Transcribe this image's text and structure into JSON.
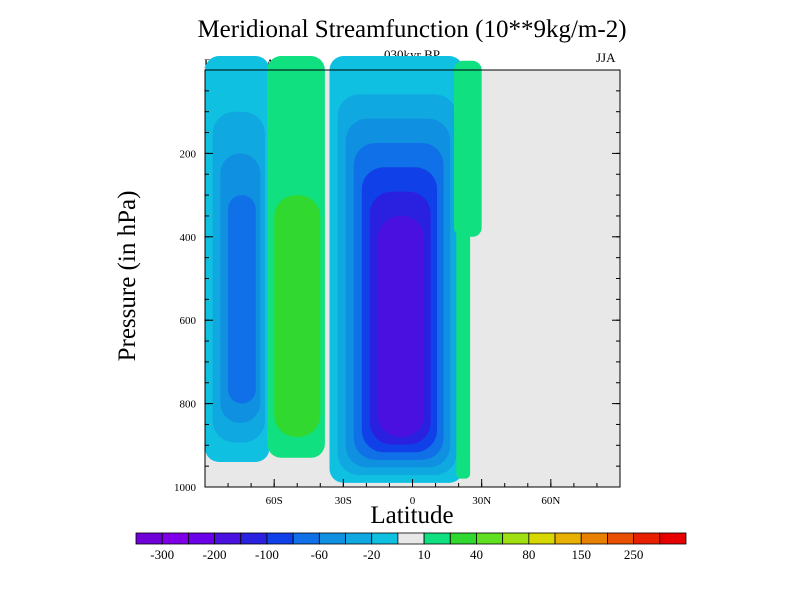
{
  "chart_data": {
    "type": "heatmap",
    "title": "Meridional Streamfunction (10**9kg/m-2)",
    "subtitle": "030kyr BP",
    "left_label": "Expt = tdxoA",
    "right_label": "JJA",
    "xlabel": "Latitude",
    "ylabel": "Pressure (in hPa)",
    "xlim": [
      -90,
      90
    ],
    "ylim": [
      1000,
      0
    ],
    "y_reversed": true,
    "x_ticks": [
      {
        "value": -60,
        "label": "60S"
      },
      {
        "value": -30,
        "label": "30S"
      },
      {
        "value": 0,
        "label": "0"
      },
      {
        "value": 30,
        "label": "30N"
      },
      {
        "value": 60,
        "label": "60N"
      }
    ],
    "y_ticks": [
      {
        "value": 200,
        "label": "200"
      },
      {
        "value": 400,
        "label": "400"
      },
      {
        "value": 600,
        "label": "600"
      },
      {
        "value": 800,
        "label": "800"
      },
      {
        "value": 1000,
        "label": "1000"
      }
    ],
    "background_color": "#e8e8e8",
    "colorbar": {
      "levels": [
        -300,
        -250,
        -200,
        -150,
        -100,
        -80,
        -60,
        -40,
        -20,
        -10,
        10,
        20,
        40,
        60,
        80,
        100,
        150,
        200,
        250,
        300
      ],
      "labels": [
        {
          "after_level_index": 0,
          "label": "-300"
        },
        {
          "after_level_index": 2,
          "label": "-200"
        },
        {
          "after_level_index": 4,
          "label": "-100"
        },
        {
          "after_level_index": 6,
          "label": "-60"
        },
        {
          "after_level_index": 8,
          "label": "-20"
        },
        {
          "after_level_index": 10,
          "label": "10"
        },
        {
          "after_level_index": 12,
          "label": "40"
        },
        {
          "after_level_index": 14,
          "label": "80"
        },
        {
          "after_level_index": 16,
          "label": "150"
        },
        {
          "after_level_index": 18,
          "label": "250"
        }
      ],
      "colors": [
        "#7000d8",
        "#7f00e8",
        "#6a00e8",
        "#4a10e0",
        "#2a20e0",
        "#1040e8",
        "#1070e8",
        "#1090e0",
        "#10a8e0",
        "#10c0e0",
        "#e8e8e8",
        "#10e080",
        "#30d830",
        "#60e020",
        "#a0e010",
        "#d8d800",
        "#e8b000",
        "#e88000",
        "#e85000",
        "#e82000",
        "#e80000"
      ]
    },
    "regions": [
      {
        "name": "sh-polar-cell",
        "sign": "negative",
        "lat": [
          -90,
          -62
        ],
        "p": [
          0,
          940
        ],
        "outer_level": -10,
        "core_level": -60,
        "core_lat": [
          -80,
          -68
        ],
        "core_p": [
          300,
          800
        ]
      },
      {
        "name": "sh-ferrel-cell",
        "sign": "positive",
        "lat": [
          -63,
          -38
        ],
        "p": [
          0,
          930
        ],
        "outer_level": 10,
        "core_level": 20,
        "core_lat": [
          -60,
          -40
        ],
        "core_p": [
          300,
          880
        ]
      },
      {
        "name": "winter-hadley-cell",
        "sign": "negative",
        "lat": [
          -36,
          22
        ],
        "p": [
          0,
          990
        ],
        "outer_level": -10,
        "core_level": -150,
        "core_lat": [
          -15,
          5
        ],
        "core_p": [
          350,
          880
        ]
      },
      {
        "name": "nh-upper-positive",
        "sign": "positive",
        "lat": [
          18,
          30
        ],
        "p": [
          0,
          400
        ],
        "outer_level": 10,
        "core_level": 10,
        "core_lat": [
          20,
          28
        ],
        "core_p": [
          0,
          150
        ]
      },
      {
        "name": "nh-lower-positive",
        "sign": "positive",
        "lat": [
          19,
          25
        ],
        "p": [
          270,
          980
        ],
        "outer_level": 10,
        "core_level": 10,
        "core_lat": [
          19,
          25
        ],
        "core_p": [
          270,
          980
        ]
      }
    ]
  }
}
